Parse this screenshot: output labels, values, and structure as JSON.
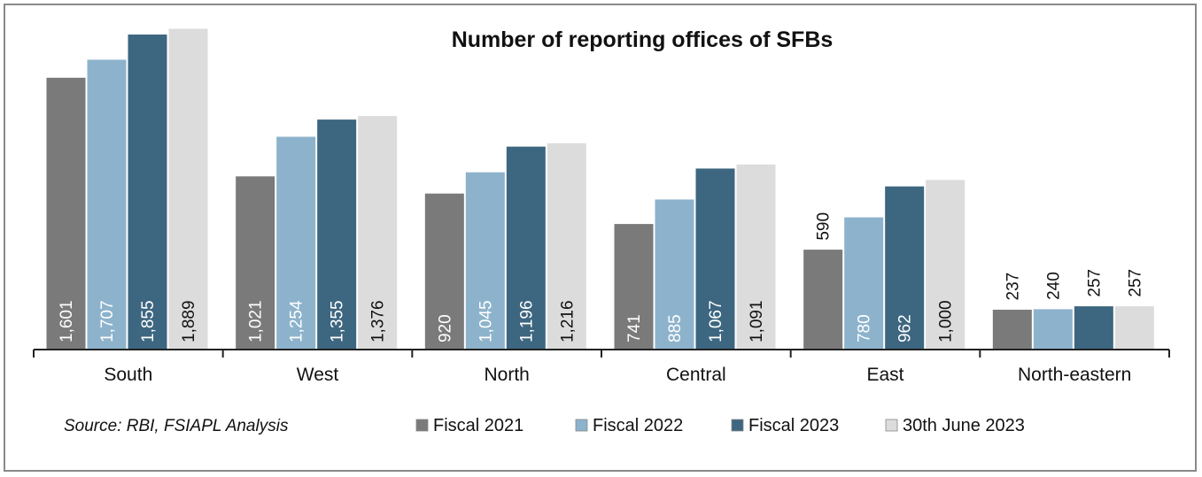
{
  "chart_data": {
    "type": "bar",
    "title": "Number of reporting offices of SFBs",
    "source": "Source: RBI, FSIAPL Analysis",
    "categories": [
      "South",
      "West",
      "North",
      "Central",
      "East",
      "North-eastern"
    ],
    "series": [
      {
        "name": "Fiscal 2021",
        "color": "#7a7a7a",
        "values": [
          1601,
          1021,
          920,
          741,
          590,
          237
        ],
        "labels": [
          "1,601",
          "1,021",
          "920",
          "741",
          "590",
          "237"
        ]
      },
      {
        "name": "Fiscal 2022",
        "color": "#8db3cc",
        "values": [
          1707,
          1254,
          1045,
          885,
          780,
          240
        ],
        "labels": [
          "1,707",
          "1,254",
          "1,045",
          "885",
          "780",
          "240"
        ]
      },
      {
        "name": "Fiscal 2023",
        "color": "#3d6680",
        "values": [
          1855,
          1355,
          1196,
          1067,
          962,
          257
        ],
        "labels": [
          "1,855",
          "1,355",
          "1,196",
          "1,067",
          "962",
          "257"
        ]
      },
      {
        "name": "30th June 2023",
        "color": "#dcdcdc",
        "values": [
          1889,
          1376,
          1216,
          1091,
          1000,
          257
        ],
        "labels": [
          "1,889",
          "1,376",
          "1,216",
          "1,091",
          "1,000",
          "257"
        ]
      }
    ],
    "ylim": [
      0,
      1889
    ],
    "legend_position": "bottom",
    "grid": false
  }
}
